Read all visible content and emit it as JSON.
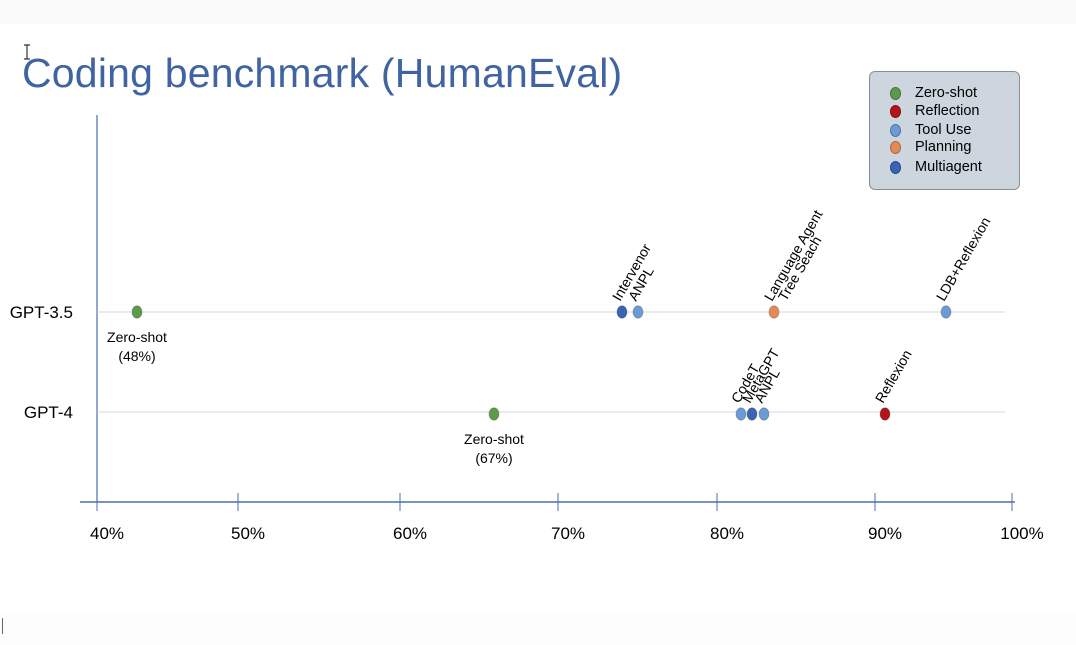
{
  "slide": {
    "title": "Coding benchmark (HumanEval)"
  },
  "legend": {
    "items": [
      {
        "label": "Zero-shot",
        "color": "#5d9a4c"
      },
      {
        "label": "Reflection",
        "color": "#b3151b"
      },
      {
        "label": "Tool Use",
        "color": "#6b9bd6"
      },
      {
        "label": "Planning",
        "color": "#e58a56"
      },
      {
        "label": "Multiagent",
        "color": "#3a63b4"
      }
    ]
  },
  "chart_data": {
    "type": "scatter",
    "title": "Coding benchmark (HumanEval)",
    "xlim": [
      40,
      100
    ],
    "x_unit": "%",
    "x_ticks": [
      "40%",
      "50%",
      "60%",
      "70%",
      "80%",
      "90%",
      "100%"
    ],
    "x_tick_values": [
      40,
      50,
      60,
      70,
      80,
      90,
      100
    ],
    "categories": [
      "GPT-3.5",
      "GPT-4"
    ],
    "grid": "horizontal guide line per model",
    "legend_position": "top-right",
    "series": [
      {
        "name": "Zero-shot",
        "color": "#5d9a4c",
        "points": [
          {
            "model": "GPT-3.5",
            "x": 48,
            "label": "Zero-shot",
            "label2": "(48%)"
          },
          {
            "model": "GPT-4",
            "x": 67,
            "label": "Zero-shot",
            "label2": "(67%)"
          }
        ]
      },
      {
        "name": "Reflection",
        "color": "#b3151b",
        "points": [
          {
            "model": "GPT-4",
            "x": 91,
            "label": "Reflexion"
          }
        ]
      },
      {
        "name": "Tool Use",
        "color": "#6b9bd6",
        "points": [
          {
            "model": "GPT-3.5",
            "x": 75,
            "label": "ANPL"
          },
          {
            "model": "GPT-3.5",
            "x": 95.1,
            "label": "LDB+Reflexion"
          },
          {
            "model": "GPT-4",
            "x": 81.5,
            "label": "CodeT"
          },
          {
            "model": "GPT-4",
            "x": 83,
            "label": "ANPL"
          }
        ]
      },
      {
        "name": "Planning",
        "color": "#e58a56",
        "points": [
          {
            "model": "GPT-3.5",
            "x": 83.8,
            "label": "Language Agent",
            "label2": "Tree Seach"
          }
        ]
      },
      {
        "name": "Multiagent",
        "color": "#3a63b4",
        "points": [
          {
            "model": "GPT-3.5",
            "x": 74,
            "label": "Intervenor"
          },
          {
            "model": "GPT-4",
            "x": 82.3,
            "label": "MetaGPT"
          }
        ]
      }
    ]
  }
}
